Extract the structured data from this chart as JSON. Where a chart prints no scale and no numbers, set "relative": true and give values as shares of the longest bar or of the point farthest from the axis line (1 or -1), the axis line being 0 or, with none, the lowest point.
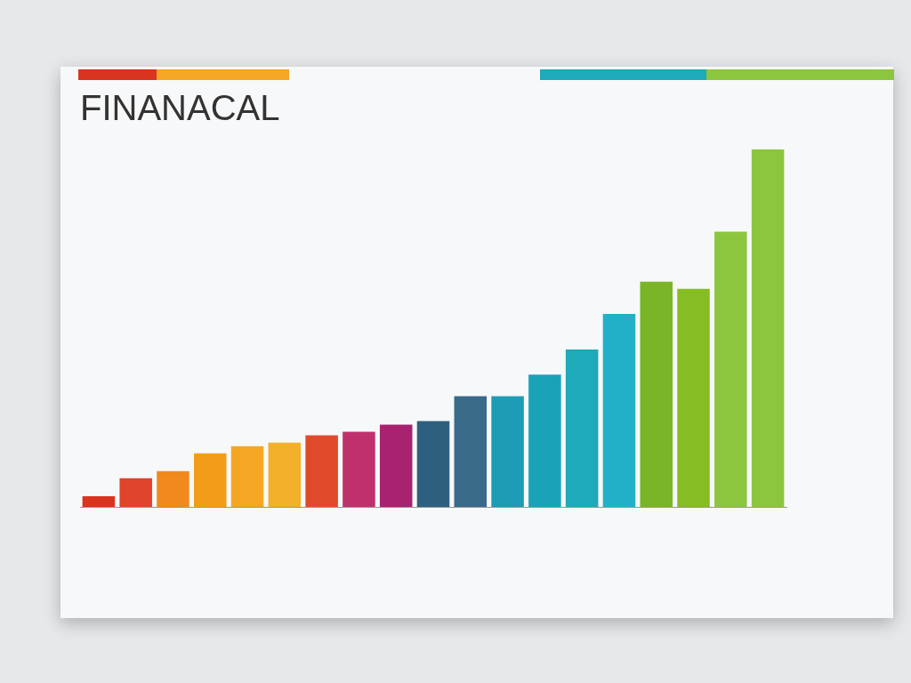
{
  "chart_data": {
    "type": "bar",
    "title": "FINANACAL",
    "relative": true,
    "categories": [
      null,
      null,
      null,
      null,
      null,
      null,
      null,
      null,
      null,
      null,
      null,
      null,
      null,
      null,
      null,
      null,
      null,
      null,
      null
    ],
    "values": [
      0.03,
      0.08,
      0.1,
      0.15,
      0.17,
      0.18,
      0.2,
      0.21,
      0.23,
      0.24,
      0.31,
      0.31,
      0.37,
      0.44,
      0.54,
      0.63,
      0.61,
      0.77,
      1
    ],
    "colors": [
      "#d9341f",
      "#e0442a",
      "#f08a1c",
      "#f39c1a",
      "#f5a623",
      "#f3b02a",
      "#e04a2a",
      "#c0306a",
      "#a8226f",
      "#2e5f7f",
      "#3a6a8a",
      "#1e9bb5",
      "#1aa3b8",
      "#1eaab8",
      "#22b0c8",
      "#7ab528",
      "#86bd22",
      "#8cc63f",
      "#8cc63f"
    ]
  }
}
